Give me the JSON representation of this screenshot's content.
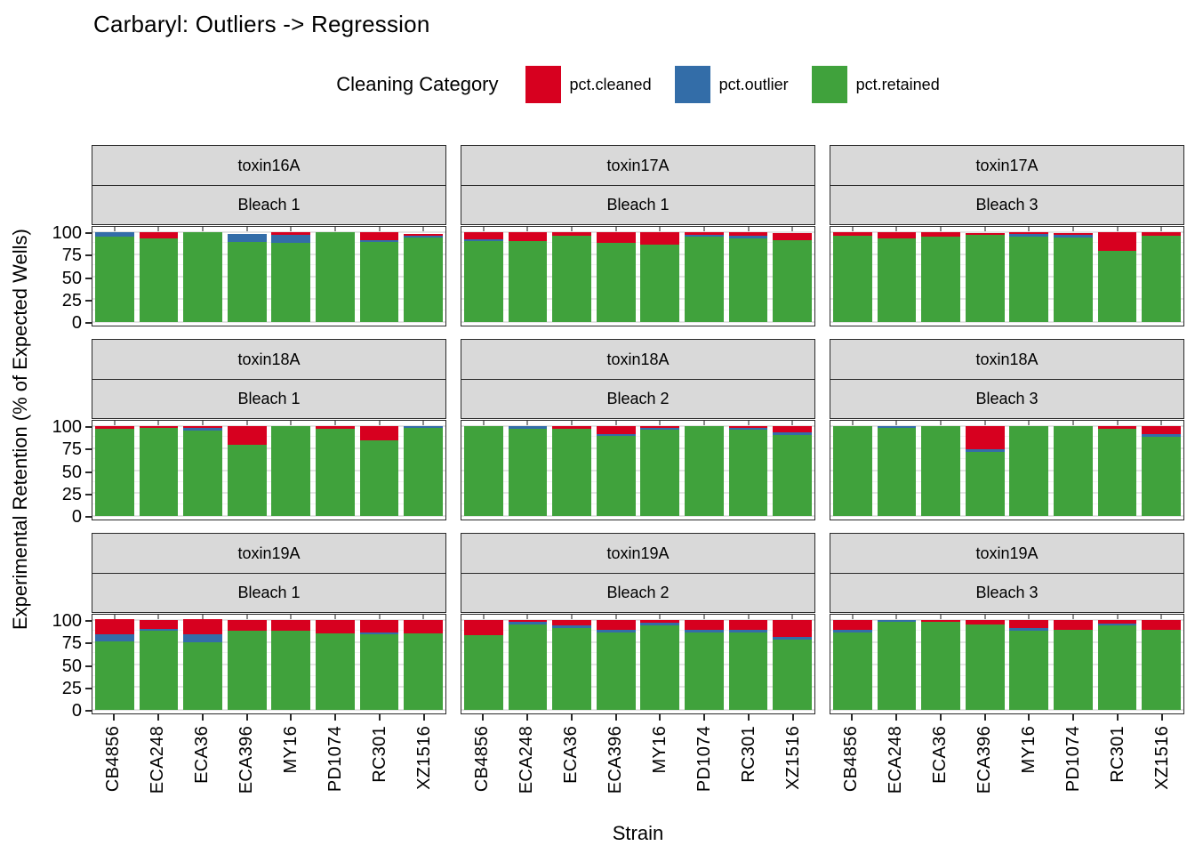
{
  "title": "Carbaryl: Outliers -> Regression",
  "legend": {
    "title": "Cleaning Category",
    "items": [
      {
        "label": "pct.cleaned",
        "color": "#d7001f"
      },
      {
        "label": "pct.outlier",
        "color": "#336da8"
      },
      {
        "label": "pct.retained",
        "color": "#40a23c"
      }
    ]
  },
  "axes": {
    "y_title": "Experimental Retention (% of Expected Wells)",
    "x_title": "Strain",
    "y_tick_labels": [
      "100",
      "75",
      "50",
      "25",
      "0"
    ]
  },
  "chart_data": {
    "type": "bar",
    "stacked": true,
    "title": "Carbaryl: Outliers -> Regression",
    "xlabel": "Strain",
    "ylabel": "Experimental Retention (% of Expected Wells)",
    "ylim": [
      0,
      100
    ],
    "y_major_ticks": [
      0,
      25,
      50,
      75,
      100
    ],
    "y_minor_ticks": [
      12.5,
      37.5,
      62.5,
      87.5
    ],
    "grid": true,
    "legend_position": "top",
    "categories": [
      "CB4856",
      "ECA248",
      "ECA36",
      "ECA396",
      "MY16",
      "PD1074",
      "RC301",
      "XZ1516"
    ],
    "stack_order_top_to_bottom": [
      "pct.cleaned",
      "pct.outlier",
      "pct.retained"
    ],
    "facet_grid": {
      "rows": 3,
      "cols": 3
    },
    "facets": [
      {
        "toxin": "toxin16A",
        "bleach": "Bleach 1",
        "series": {
          "pct.cleaned": [
            0,
            7,
            0,
            0,
            3,
            0,
            9,
            2
          ],
          "pct.outlier": [
            5,
            0,
            0,
            9,
            9,
            0,
            2,
            2
          ],
          "pct.retained": [
            95,
            93,
            100,
            89,
            88,
            100,
            89,
            94
          ]
        }
      },
      {
        "toxin": "toxin17A",
        "bleach": "Bleach 1",
        "series": {
          "pct.cleaned": [
            8,
            10,
            4,
            12,
            14,
            3,
            4,
            8
          ],
          "pct.outlier": [
            2,
            0,
            0,
            0,
            0,
            2,
            3,
            0
          ],
          "pct.retained": [
            90,
            90,
            96,
            88,
            86,
            95,
            93,
            91
          ]
        }
      },
      {
        "toxin": "toxin17A",
        "bleach": "Bleach 3",
        "series": {
          "pct.cleaned": [
            4,
            7,
            5,
            2,
            2,
            2,
            21,
            4
          ],
          "pct.outlier": [
            0,
            0,
            0,
            0,
            3,
            3,
            0,
            0
          ],
          "pct.retained": [
            96,
            93,
            95,
            97,
            95,
            94,
            79,
            96
          ]
        }
      },
      {
        "toxin": "toxin18A",
        "bleach": "Bleach 1",
        "series": {
          "pct.cleaned": [
            3,
            2,
            2,
            21,
            0,
            3,
            16,
            0
          ],
          "pct.outlier": [
            0,
            0,
            3,
            0,
            0,
            0,
            0,
            2
          ],
          "pct.retained": [
            97,
            98,
            95,
            79,
            100,
            97,
            84,
            98
          ]
        }
      },
      {
        "toxin": "toxin18A",
        "bleach": "Bleach 2",
        "series": {
          "pct.cleaned": [
            0,
            0,
            3,
            9,
            2,
            0,
            2,
            7
          ],
          "pct.outlier": [
            0,
            3,
            0,
            2,
            2,
            0,
            2,
            3
          ],
          "pct.retained": [
            100,
            97,
            97,
            89,
            96,
            100,
            96,
            90
          ]
        }
      },
      {
        "toxin": "toxin18A",
        "bleach": "Bleach 3",
        "series": {
          "pct.cleaned": [
            0,
            0,
            0,
            26,
            0,
            0,
            3,
            9
          ],
          "pct.outlier": [
            0,
            2,
            0,
            3,
            0,
            0,
            0,
            3
          ],
          "pct.retained": [
            100,
            98,
            100,
            71,
            100,
            100,
            97,
            88
          ]
        }
      },
      {
        "toxin": "toxin19A",
        "bleach": "Bleach 1",
        "series": {
          "pct.cleaned": [
            16,
            10,
            16,
            12,
            12,
            15,
            14,
            15
          ],
          "pct.outlier": [
            8,
            2,
            9,
            0,
            0,
            0,
            2,
            0
          ],
          "pct.retained": [
            76,
            88,
            75,
            88,
            88,
            85,
            84,
            85
          ]
        }
      },
      {
        "toxin": "toxin19A",
        "bleach": "Bleach 2",
        "series": {
          "pct.cleaned": [
            17,
            2,
            6,
            11,
            3,
            11,
            11,
            19
          ],
          "pct.outlier": [
            0,
            3,
            3,
            3,
            3,
            3,
            3,
            3
          ],
          "pct.retained": [
            83,
            95,
            91,
            86,
            94,
            86,
            86,
            78
          ]
        }
      },
      {
        "toxin": "toxin19A",
        "bleach": "Bleach 3",
        "series": {
          "pct.cleaned": [
            11,
            0,
            2,
            5,
            9,
            11,
            4,
            11
          ],
          "pct.outlier": [
            3,
            2,
            0,
            0,
            3,
            0,
            2,
            0
          ],
          "pct.retained": [
            86,
            98,
            98,
            95,
            88,
            89,
            94,
            89
          ]
        }
      }
    ]
  }
}
